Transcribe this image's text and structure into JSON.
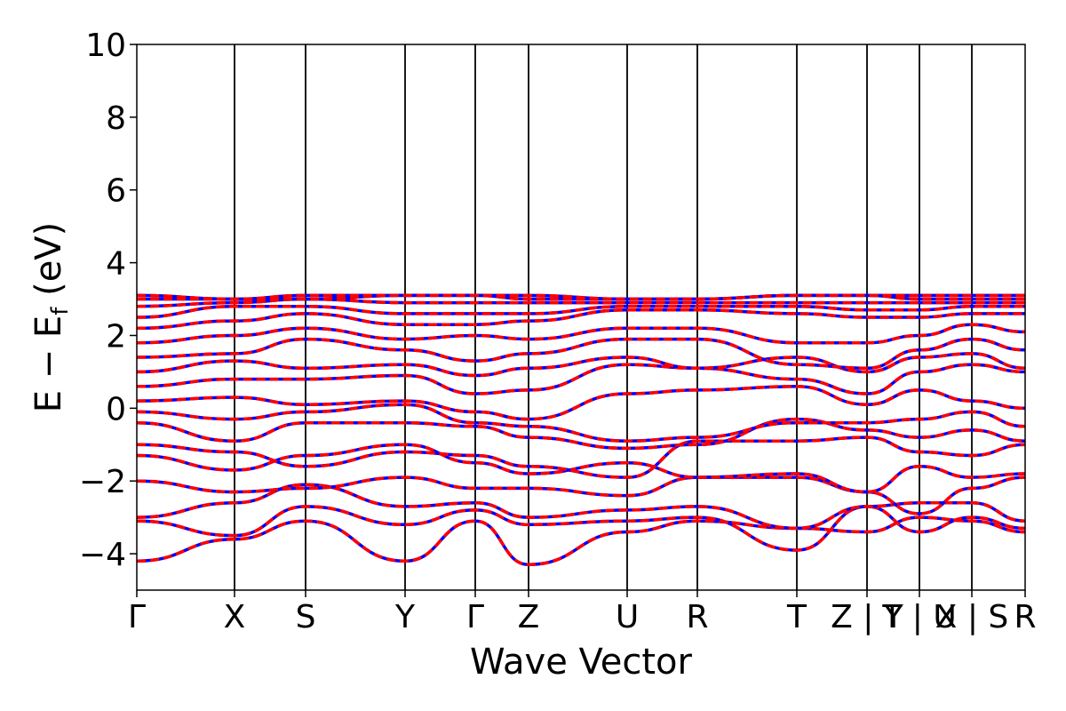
{
  "chart_data": {
    "type": "line",
    "title": "",
    "xlabel": "Wave Vector",
    "ylabel_parts": {
      "main": "E − E",
      "sub": "f",
      "unit": " (eV)"
    },
    "ylim": [
      -5,
      10
    ],
    "yticks": [
      -4,
      -2,
      0,
      2,
      4,
      6,
      8,
      10
    ],
    "ytick_labels": [
      "−4",
      "−2",
      "0",
      "2",
      "4",
      "6",
      "8",
      "10"
    ],
    "x_range": [
      0,
      10
    ],
    "kpoint_labels": [
      {
        "label": "Γ",
        "x": 0.0
      },
      {
        "label": "X",
        "x": 1.1
      },
      {
        "label": "S",
        "x": 1.9
      },
      {
        "label": "Y",
        "x": 3.02
      },
      {
        "label": "Γ",
        "x": 3.81
      },
      {
        "label": "Z",
        "x": 4.41
      },
      {
        "label": "U",
        "x": 5.52
      },
      {
        "label": "R",
        "x": 6.31
      },
      {
        "label": "T",
        "x": 7.43
      },
      {
        "label": "Z | Y",
        "x": 8.22
      },
      {
        "label": "T | U",
        "x": 8.81
      },
      {
        "label": "X | S",
        "x": 9.4
      },
      {
        "label": "R",
        "x": 10.0
      }
    ],
    "series_colors": {
      "up": "#ff0000",
      "down": "#0000ff"
    },
    "bands": [
      {
        "y": [
          -4.2,
          -3.6,
          -3.1,
          -4.2,
          -3.1,
          -4.3,
          -3.4,
          -3.1,
          -3.3,
          -3.4,
          -3.0,
          -3.1,
          -3.4
        ]
      },
      {
        "y": [
          -3.1,
          -3.5,
          -2.7,
          -3.2,
          -2.8,
          -3.2,
          -3.1,
          -3.0,
          -3.9,
          -2.7,
          -3.4,
          -3.0,
          -3.3
        ]
      },
      {
        "y": [
          -3.0,
          -2.6,
          -2.1,
          -2.7,
          -2.6,
          -3.0,
          -2.8,
          -2.7,
          -3.3,
          -2.7,
          -2.6,
          -2.6,
          -3.1
        ]
      },
      {
        "y": [
          -2.0,
          -2.3,
          -2.2,
          -1.9,
          -2.2,
          -2.2,
          -2.4,
          -1.9,
          -1.9,
          -2.3,
          -2.9,
          -2.2,
          -1.9
        ]
      },
      {
        "y": [
          -1.3,
          -1.7,
          -1.3,
          -1.0,
          -1.5,
          -1.8,
          -1.5,
          -1.9,
          -1.8,
          -2.3,
          -1.6,
          -1.9,
          -1.8
        ]
      },
      {
        "y": [
          -1.0,
          -1.2,
          -1.6,
          -1.2,
          -1.3,
          -1.6,
          -1.9,
          -0.9,
          -0.9,
          -0.8,
          -1.2,
          -1.3,
          -1.0
        ]
      },
      {
        "y": [
          -0.4,
          -0.9,
          -0.4,
          -0.4,
          -0.5,
          -0.8,
          -1.1,
          -1.0,
          -0.3,
          -0.6,
          -0.8,
          -0.6,
          -0.9
        ]
      },
      {
        "y": [
          -0.1,
          -0.3,
          -0.1,
          0.1,
          -0.4,
          -0.5,
          -0.9,
          -0.8,
          -0.4,
          -0.4,
          -0.3,
          -0.1,
          -0.5
        ]
      },
      {
        "y": [
          0.2,
          0.3,
          0.1,
          0.2,
          -0.1,
          -0.3,
          0.4,
          0.5,
          0.6,
          0.1,
          0.5,
          0.2,
          0.0
        ]
      },
      {
        "y": [
          0.6,
          0.8,
          0.8,
          0.9,
          0.4,
          0.5,
          1.2,
          1.1,
          0.8,
          0.4,
          1.0,
          1.2,
          1.0
        ]
      },
      {
        "y": [
          1.0,
          1.3,
          1.1,
          1.2,
          0.9,
          1.1,
          1.4,
          1.1,
          1.4,
          1.0,
          1.4,
          1.5,
          1.1
        ]
      },
      {
        "y": [
          1.4,
          1.5,
          1.9,
          1.6,
          1.3,
          1.5,
          1.9,
          1.9,
          1.2,
          1.1,
          1.6,
          1.9,
          1.6
        ]
      },
      {
        "y": [
          1.8,
          2.0,
          2.2,
          1.9,
          2.0,
          1.9,
          2.2,
          2.2,
          1.8,
          1.8,
          2.0,
          2.3,
          2.1
        ]
      },
      {
        "y": [
          2.2,
          2.4,
          2.6,
          2.3,
          2.3,
          2.4,
          2.7,
          2.7,
          2.6,
          2.5,
          2.5,
          2.6,
          2.6
        ]
      },
      {
        "y": [
          2.5,
          2.8,
          2.8,
          2.6,
          2.6,
          2.6,
          2.8,
          2.8,
          2.8,
          2.7,
          2.7,
          2.8,
          2.8
        ]
      },
      {
        "y": [
          2.8,
          2.9,
          3.0,
          2.9,
          2.9,
          2.9,
          2.9,
          2.9,
          2.9,
          2.9,
          2.9,
          2.9,
          2.9
        ]
      },
      {
        "y": [
          3.0,
          3.0,
          3.0,
          3.1,
          3.1,
          3.0,
          3.0,
          3.0,
          3.1,
          3.1,
          3.0,
          3.0,
          3.0
        ]
      },
      {
        "y": [
          3.1,
          3.0,
          3.1,
          3.1,
          3.1,
          3.1,
          3.0,
          3.0,
          3.1,
          3.1,
          3.1,
          3.1,
          3.1
        ]
      }
    ]
  }
}
